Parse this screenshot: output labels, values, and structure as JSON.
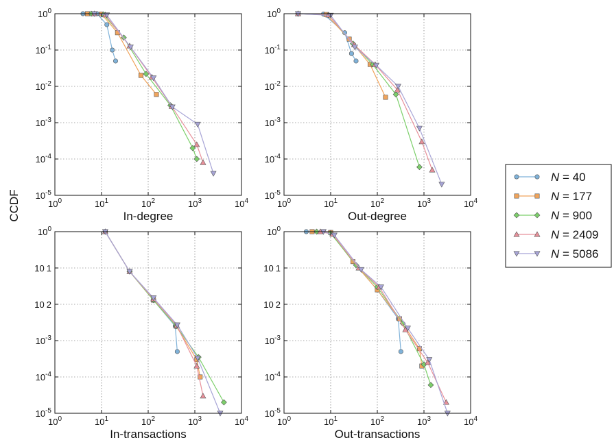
{
  "ylabel": "CCDF",
  "colors": {
    "N40": "#7fb2d9",
    "N177": "#f0a45c",
    "N900": "#7ccf6a",
    "N2409": "#e8909a",
    "N5086": "#a7a4d6"
  },
  "legend": [
    {
      "sym": "N",
      "eq": " = 40",
      "marker": "circle",
      "color": "#7fb2d9"
    },
    {
      "sym": "N",
      "eq": " = 177",
      "marker": "square",
      "color": "#f0a45c"
    },
    {
      "sym": "N",
      "eq": " = 900",
      "marker": "diamond",
      "color": "#7ccf6a"
    },
    {
      "sym": "N",
      "eq": " = 2409",
      "marker": "triangle-up",
      "color": "#e8909a"
    },
    {
      "sym": "N",
      "eq": " = 5086",
      "marker": "triangle-down",
      "color": "#a7a4d6"
    }
  ],
  "chart_data": [
    {
      "type": "line",
      "xlabel": "In-degree",
      "xscale": "log",
      "yscale": "log",
      "xlim": [
        1,
        10000
      ],
      "ylim": [
        1e-05,
        1
      ],
      "xticks": [
        "10^0",
        "10^1",
        "10^2",
        "10^3",
        "10^4"
      ],
      "yticks": [
        "10^0",
        "10^-1",
        "10^-2",
        "10^-3",
        "10^-4",
        "10^-5"
      ],
      "grid": true,
      "series": [
        {
          "name": "N = 40",
          "x": [
            4,
            8,
            13,
            17,
            20
          ],
          "y": [
            1,
            1,
            0.5,
            0.1,
            0.05
          ]
        },
        {
          "name": "N = 177",
          "x": [
            5,
            10,
            22,
            70,
            150
          ],
          "y": [
            1,
            0.98,
            0.3,
            0.02,
            0.006
          ]
        },
        {
          "name": "N = 900",
          "x": [
            6,
            11,
            30,
            90,
            300,
            900,
            1100
          ],
          "y": [
            1,
            0.95,
            0.22,
            0.022,
            0.003,
            0.0002,
            0.0001
          ]
        },
        {
          "name": "N = 2409",
          "x": [
            7,
            12,
            40,
            120,
            320,
            1100,
            1500
          ],
          "y": [
            1,
            0.93,
            0.13,
            0.018,
            0.0028,
            0.00025,
            8e-05
          ]
        },
        {
          "name": "N = 5086",
          "x": [
            7,
            13,
            42,
            130,
            330,
            1150,
            2500
          ],
          "y": [
            1,
            0.92,
            0.12,
            0.017,
            0.0027,
            0.0009,
            4e-05
          ]
        }
      ]
    },
    {
      "type": "line",
      "xlabel": "Out-degree",
      "xscale": "log",
      "yscale": "log",
      "xlim": [
        1,
        10000
      ],
      "ylim": [
        1e-05,
        1
      ],
      "xticks": [
        "10^0",
        "10^1",
        "10^2",
        "10^3",
        "10^4"
      ],
      "yticks": [
        "10^0",
        "10^-1",
        "10^-2",
        "10^-3",
        "10^-4",
        "10^-5"
      ],
      "grid": true,
      "series": [
        {
          "name": "N = 40",
          "x": [
            2,
            7,
            20,
            28,
            35
          ],
          "y": [
            1,
            0.98,
            0.3,
            0.08,
            0.05
          ]
        },
        {
          "name": "N = 177",
          "x": [
            2,
            8,
            25,
            70,
            150
          ],
          "y": [
            1,
            0.95,
            0.2,
            0.04,
            0.005
          ]
        },
        {
          "name": "N = 900",
          "x": [
            2,
            9,
            30,
            80,
            250,
            800
          ],
          "y": [
            1,
            0.92,
            0.15,
            0.04,
            0.006,
            6e-05
          ]
        },
        {
          "name": "N = 2409",
          "x": [
            2,
            9,
            32,
            90,
            270,
            900,
            1500
          ],
          "y": [
            1,
            0.92,
            0.14,
            0.04,
            0.008,
            0.0003,
            5e-05
          ]
        },
        {
          "name": "N = 5086",
          "x": [
            2,
            10,
            33,
            95,
            280,
            800,
            2400
          ],
          "y": [
            1,
            0.9,
            0.12,
            0.038,
            0.01,
            0.0007,
            2e-05
          ]
        }
      ]
    },
    {
      "type": "line",
      "xlabel": "In-transactions",
      "xscale": "log",
      "yscale": "log",
      "xlim": [
        1,
        10000
      ],
      "ylim": [
        1e-05,
        1
      ],
      "xticks": [
        "10^0",
        "10^1",
        "10^2",
        "10^3",
        "10^4"
      ],
      "yticks": [
        "10^0",
        "10 1",
        "10 2",
        "10^-3",
        "10^-4",
        "10^-5"
      ],
      "grid": true,
      "series": [
        {
          "name": "N = 40",
          "x": [
            12,
            40,
            130,
            380,
            420
          ],
          "y": [
            1,
            0.08,
            0.013,
            0.0025,
            0.0005
          ]
        },
        {
          "name": "N = 177",
          "x": [
            12,
            40,
            130,
            400,
            1100,
            1300
          ],
          "y": [
            1,
            0.08,
            0.013,
            0.0025,
            0.0003,
            0.0001
          ]
        },
        {
          "name": "N = 900",
          "x": [
            12,
            40,
            130,
            400,
            1200,
            4200
          ],
          "y": [
            1,
            0.08,
            0.013,
            0.0025,
            0.00035,
            2e-05
          ]
        },
        {
          "name": "N = 2409",
          "x": [
            12,
            40,
            130,
            410,
            1100,
            1500
          ],
          "y": [
            1,
            0.08,
            0.014,
            0.0026,
            0.0002,
            3e-05
          ]
        },
        {
          "name": "N = 5086",
          "x": [
            12,
            40,
            130,
            420,
            1150,
            3500
          ],
          "y": [
            1,
            0.08,
            0.015,
            0.0027,
            0.00033,
            1e-05
          ]
        }
      ]
    },
    {
      "type": "line",
      "xlabel": "Out-transactions",
      "xscale": "log",
      "yscale": "log",
      "xlim": [
        1,
        10000
      ],
      "ylim": [
        1e-05,
        1
      ],
      "xticks": [
        "10^0",
        "10^1",
        "10^2",
        "10^3",
        "10^4"
      ],
      "yticks": [
        "10^0",
        "10 1",
        "10 2",
        "10^-3",
        "10^-4",
        "10^-5"
      ],
      "grid": true,
      "series": [
        {
          "name": "N = 40",
          "x": [
            3,
            10,
            30,
            100,
            280,
            320
          ],
          "y": [
            1,
            0.95,
            0.15,
            0.025,
            0.004,
            0.0005
          ]
        },
        {
          "name": "N = 177",
          "x": [
            4,
            10,
            30,
            100,
            300,
            800,
            900
          ],
          "y": [
            1,
            0.95,
            0.15,
            0.025,
            0.004,
            0.0006,
            0.0002
          ]
        },
        {
          "name": "N = 900",
          "x": [
            5,
            10,
            35,
            100,
            350,
            1000,
            1400
          ],
          "y": [
            1,
            0.9,
            0.12,
            0.03,
            0.003,
            0.00022,
            6e-05
          ]
        },
        {
          "name": "N = 2409",
          "x": [
            6,
            11,
            40,
            110,
            400,
            1200,
            3000
          ],
          "y": [
            1,
            0.85,
            0.1,
            0.03,
            0.002,
            0.00025,
            2e-05
          ]
        },
        {
          "name": "N = 5086",
          "x": [
            7,
            12,
            45,
            120,
            450,
            1300,
            3200
          ],
          "y": [
            1,
            0.8,
            0.09,
            0.03,
            0.0022,
            0.0003,
            1e-05
          ]
        }
      ]
    }
  ]
}
